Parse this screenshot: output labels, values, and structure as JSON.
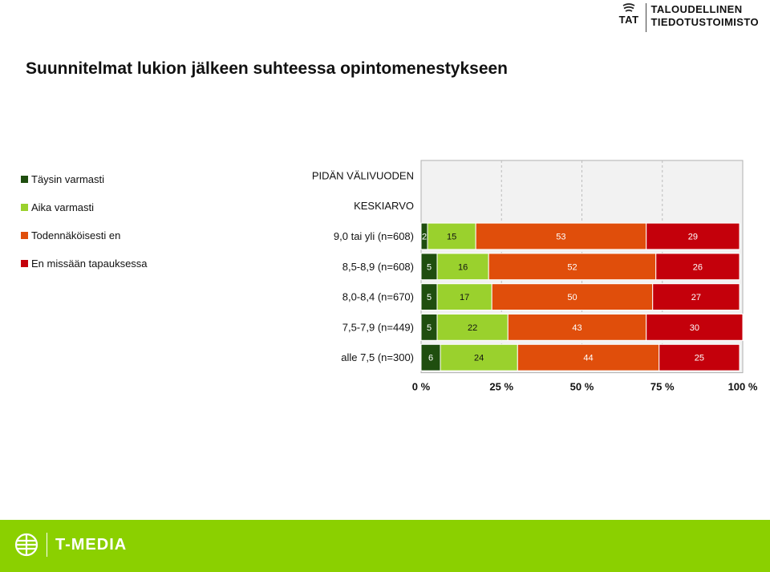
{
  "logo": {
    "abbr": "TAT",
    "line1": "TALOUDELLINEN",
    "line2": "TIEDOTUSTOIMISTO"
  },
  "title": "Suunnitelmat lukion jälkeen suhteessa opintomenestykseen",
  "footer": {
    "brand": "T-MEDIA",
    "color": "#8bd000"
  },
  "chart_data": {
    "type": "bar",
    "orientation": "horizontal",
    "stacked": true,
    "categories": [
      "PIDÄN VÄLIVUODEN",
      "KESKIARVO",
      "9,0 tai yli (n=608)",
      "8,5-8,9 (n=608)",
      "8,0-8,4 (n=670)",
      "7,5-7,9 (n=449)",
      "alle 7,5 (n=300)"
    ],
    "series": [
      {
        "name": "Täysin varmasti",
        "color": "#1f4e0f",
        "label_color": "#ffffff",
        "values": [
          null,
          null,
          2,
          5,
          5,
          5,
          6
        ]
      },
      {
        "name": "Aika varmasti",
        "color": "#9ad12d",
        "label_color": "#111111",
        "values": [
          null,
          null,
          15,
          16,
          17,
          22,
          24
        ]
      },
      {
        "name": "Todennäköisesti en",
        "color": "#e04e0b",
        "label_color": "#ffffff",
        "values": [
          null,
          null,
          53,
          52,
          50,
          43,
          44
        ]
      },
      {
        "name": "En missään tapauksessa",
        "color": "#c4000b",
        "label_color": "#ffffff",
        "values": [
          null,
          null,
          29,
          26,
          27,
          30,
          25
        ]
      }
    ],
    "x_ticks": [
      "0 %",
      "25 %",
      "50 %",
      "75 %",
      "100 %"
    ],
    "xlim": [
      0,
      100
    ],
    "grid": true,
    "legend_position": "left"
  }
}
